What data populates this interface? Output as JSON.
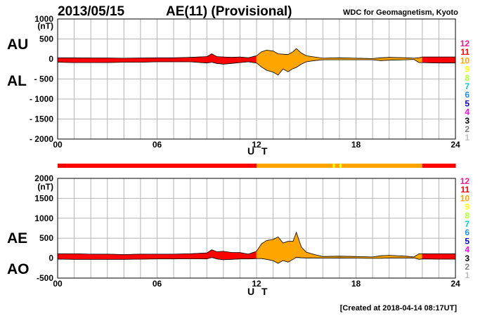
{
  "header": {
    "date": "2013/05/15",
    "title": "AE(11) (Provisional)",
    "source": "WDC for Geomagnetism, Kyoto",
    "created": "[Created at 2018-04-14 08:17UT]"
  },
  "colors": {
    "background": "#ffffff",
    "grid": "#b4b4b4",
    "outline": "#000000",
    "activity_levels": [
      "#ff1493",
      "#ff0000",
      "#ffa500",
      "#ffff00",
      "#adff2f",
      "#00ced1",
      "#1e90ff",
      "#0000cd",
      "#ff00ff",
      "#000000",
      "#808080",
      "#c0c0c0"
    ]
  },
  "activity_levels": [
    "12",
    "11",
    "10",
    "9",
    "8",
    "7",
    "6",
    "5",
    "4",
    "3",
    "2",
    "1"
  ],
  "chart_data": [
    {
      "type": "area",
      "panel": "AU/AL",
      "series_labels": [
        "AU",
        "AL"
      ],
      "unit": "(nT)",
      "xlabel": "U T",
      "xlim": [
        0,
        24
      ],
      "x_ticks": [
        "00",
        "06",
        "12",
        "18",
        "24"
      ],
      "ylim": [
        -2000,
        1000
      ],
      "y_ticks": [
        "1000",
        "500",
        "0",
        "- 500",
        "- 1000",
        "- 1500",
        "- 2000"
      ],
      "grid": true,
      "x": [
        0,
        1,
        2,
        3,
        4,
        5,
        6,
        7,
        8,
        9,
        9.3,
        9.6,
        10,
        10.5,
        11,
        11.5,
        12,
        12.3,
        12.6,
        13,
        13.3,
        13.6,
        13.9,
        14.2,
        14.4,
        14.7,
        15,
        15.5,
        16,
        17,
        18,
        19,
        19.5,
        20,
        21,
        21.5,
        21.8,
        22,
        23,
        24
      ],
      "series": [
        {
          "name": "AU",
          "values": [
            30,
            30,
            25,
            25,
            20,
            25,
            30,
            30,
            40,
            60,
            130,
            60,
            50,
            40,
            50,
            30,
            80,
            180,
            220,
            200,
            130,
            120,
            110,
            180,
            260,
            150,
            80,
            50,
            20,
            30,
            20,
            10,
            30,
            40,
            30,
            20,
            30,
            50,
            50,
            50
          ]
        },
        {
          "name": "AL",
          "values": [
            -80,
            -90,
            -90,
            -90,
            -80,
            -80,
            -70,
            -70,
            -70,
            -100,
            -80,
            -110,
            -130,
            -110,
            -90,
            -70,
            -100,
            -200,
            -280,
            -330,
            -400,
            -250,
            -320,
            -240,
            -210,
            -130,
            -70,
            -40,
            -20,
            -20,
            -20,
            -20,
            -40,
            -30,
            -20,
            -10,
            -90,
            -90,
            -100,
            -100
          ]
        }
      ],
      "activity_bar": {
        "colors_by_hour": [
          "11",
          "11",
          "11",
          "11",
          "11",
          "11",
          "11",
          "11",
          "11",
          "11",
          "11",
          "11",
          "10",
          "10",
          "10",
          "10",
          "10",
          "10",
          "10",
          "10",
          "10",
          "10",
          "11",
          "11"
        ],
        "level9_marks_hours": [
          16.6,
          17.0
        ]
      }
    },
    {
      "type": "area",
      "panel": "AE/AO",
      "series_labels": [
        "AE",
        "AO"
      ],
      "unit": "(nT)",
      "xlabel": "U T",
      "xlim": [
        0,
        24
      ],
      "x_ticks": [
        "00",
        "06",
        "12",
        "18",
        "24"
      ],
      "ylim": [
        -500,
        2000
      ],
      "y_ticks": [
        "2000",
        "1500",
        "1000",
        "500",
        "0",
        "-500"
      ],
      "grid": true,
      "x": [
        0,
        1,
        2,
        3,
        4,
        5,
        6,
        7,
        8,
        9,
        9.3,
        9.6,
        10,
        10.5,
        11,
        11.5,
        12,
        12.3,
        12.6,
        13,
        13.3,
        13.6,
        13.9,
        14.2,
        14.4,
        14.7,
        15,
        15.5,
        16,
        17,
        18,
        19,
        19.5,
        20,
        21,
        21.5,
        21.8,
        22,
        23,
        24
      ],
      "series": [
        {
          "name": "AE",
          "values": [
            110,
            110,
            100,
            100,
            90,
            100,
            100,
            100,
            110,
            130,
            210,
            160,
            170,
            140,
            140,
            100,
            170,
            360,
            440,
            470,
            530,
            380,
            420,
            420,
            650,
            280,
            150,
            90,
            40,
            50,
            40,
            30,
            60,
            70,
            50,
            30,
            110,
            110,
            110,
            110
          ]
        },
        {
          "name": "AO",
          "values": [
            -25,
            -30,
            -30,
            -30,
            -30,
            -25,
            -20,
            -20,
            -15,
            -20,
            20,
            -20,
            -40,
            -30,
            -20,
            -20,
            -10,
            -10,
            -30,
            -65,
            -130,
            -60,
            -100,
            -30,
            25,
            10,
            5,
            5,
            0,
            5,
            0,
            -5,
            -5,
            5,
            5,
            5,
            -30,
            -20,
            -25,
            -25
          ]
        }
      ],
      "activity_bar": {
        "colors_by_hour": [
          "11",
          "11",
          "11",
          "11",
          "11",
          "11",
          "11",
          "11",
          "11",
          "11",
          "11",
          "11",
          "10",
          "10",
          "10",
          "10",
          "10",
          "10",
          "10",
          "10",
          "10",
          "10",
          "11",
          "11"
        ],
        "level9_marks_hours": [
          16.6,
          17.0
        ]
      }
    }
  ]
}
